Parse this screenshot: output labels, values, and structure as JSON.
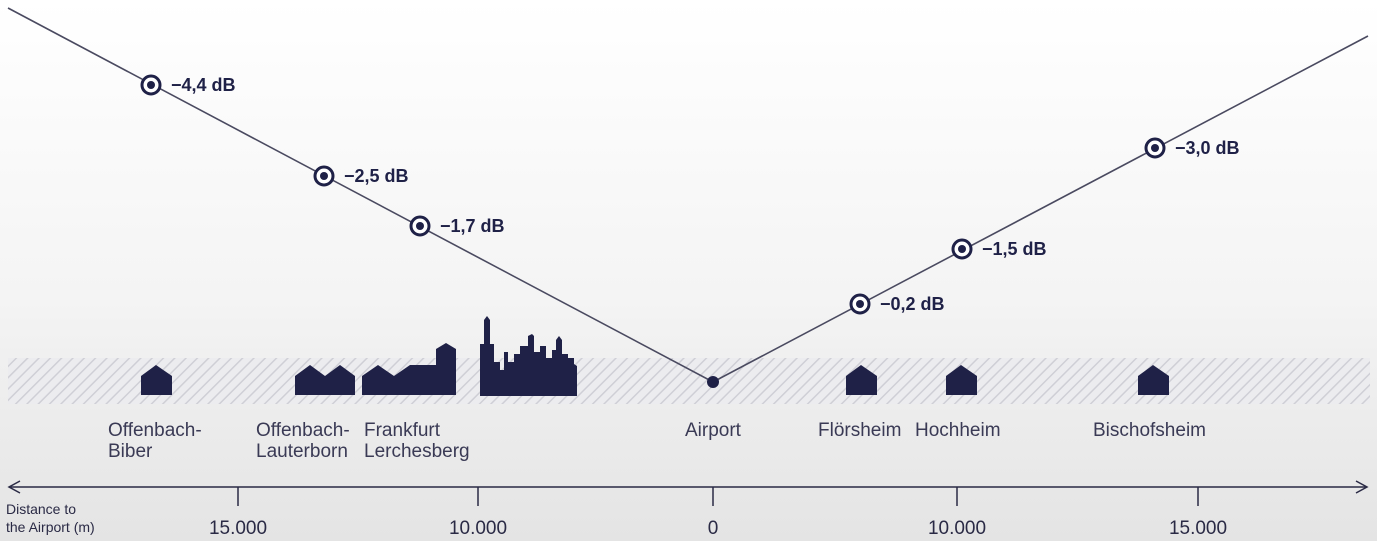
{
  "towns": [
    {
      "id": "offenbach-biber",
      "label": "Offenbach-\nBiber"
    },
    {
      "id": "offenbach-lauterborn",
      "label": "Offenbach-\nLauterborn"
    },
    {
      "id": "frankfurt-lerchesberg",
      "label": "Frankfurt\nLerchesberg"
    },
    {
      "id": "airport",
      "label": "Airport"
    },
    {
      "id": "floersheim",
      "label": "Flörsheim"
    },
    {
      "id": "hochheim",
      "label": "Hochheim"
    },
    {
      "id": "bischofsheim",
      "label": "Bischofsheim"
    }
  ],
  "noise_reductions": [
    {
      "label": "−4,4 dB",
      "value": -4.4
    },
    {
      "label": "−2,5 dB",
      "value": -2.5
    },
    {
      "label": "−1,7 dB",
      "value": -1.7
    },
    {
      "label": "−0,2 dB",
      "value": -0.2
    },
    {
      "label": "−1,5 dB",
      "value": -1.5
    },
    {
      "label": "−3,0 dB",
      "value": -3.0
    }
  ],
  "axis": {
    "title": "Distance to\nthe Airport (m)",
    "ticks": [
      "15.000",
      "10.000",
      "0",
      "10.000",
      "15.000"
    ]
  },
  "colors": {
    "navy": "#1f2147",
    "line": "#4a4a60",
    "hatch": "#cfcfd6"
  }
}
